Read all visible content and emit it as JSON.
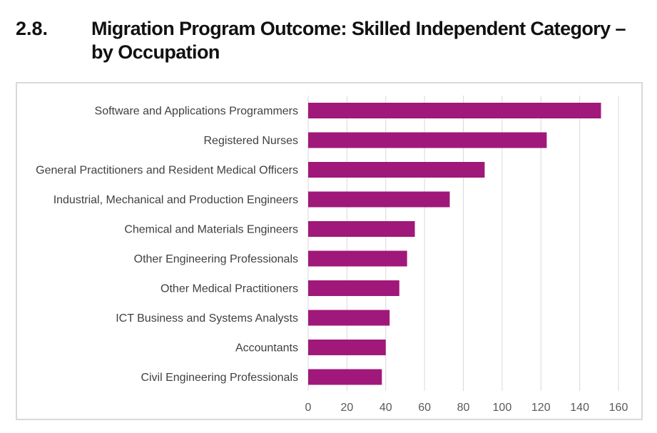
{
  "heading": {
    "number": "2.8.",
    "title": "Migration Program Outcome: Skilled Independent Category – by Occupation"
  },
  "colors": {
    "bar": "#a0187a",
    "grid": "#d9d9d9",
    "frame": "#d9d9d9"
  },
  "chart_data": {
    "type": "bar",
    "orientation": "horizontal",
    "categories": [
      "Software and Applications Programmers",
      "Registered Nurses",
      "General Practitioners and Resident Medical Officers",
      "Industrial, Mechanical and Production Engineers",
      "Chemical and Materials Engineers",
      "Other Engineering Professionals",
      "Other Medical Practitioners",
      "ICT Business and Systems Analysts",
      "Accountants",
      "Civil Engineering Professionals"
    ],
    "values": [
      151,
      123,
      91,
      73,
      55,
      51,
      47,
      42,
      40,
      38
    ],
    "xlim": [
      0,
      160
    ],
    "xticks": [
      0,
      20,
      40,
      60,
      80,
      100,
      120,
      140,
      160
    ],
    "grid": true,
    "legend": false
  }
}
